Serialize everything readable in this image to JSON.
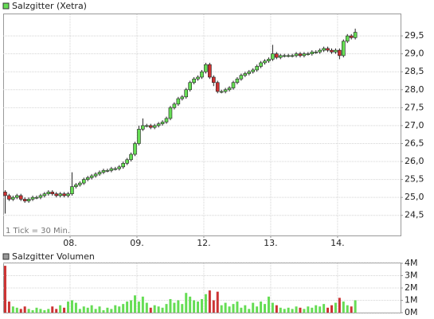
{
  "chart_data": [
    {
      "type": "candlestick",
      "title": "Salzgitter (Xetra)",
      "note": "1 Tick = 30 Min.",
      "up_color": "#66dd55",
      "down_color": "#cc3333",
      "grid": true,
      "categories": [
        null,
        null,
        null,
        null,
        null,
        null,
        null,
        null,
        null,
        null,
        null,
        null,
        null,
        null,
        null,
        null,
        null,
        "08.",
        null,
        null,
        null,
        null,
        null,
        null,
        null,
        null,
        null,
        null,
        null,
        null,
        null,
        null,
        null,
        null,
        "09.",
        null,
        null,
        null,
        null,
        null,
        null,
        null,
        null,
        null,
        null,
        null,
        null,
        null,
        null,
        null,
        null,
        "12.",
        null,
        null,
        null,
        null,
        null,
        null,
        null,
        null,
        null,
        null,
        null,
        null,
        null,
        null,
        null,
        null,
        "13.",
        null,
        null,
        null,
        null,
        null,
        null,
        null,
        null,
        null,
        null,
        null,
        null,
        null,
        null,
        null,
        null,
        "14.",
        null,
        null,
        null,
        null
      ],
      "open": [
        25.15,
        25.05,
        24.95,
        25.0,
        25.05,
        24.95,
        24.9,
        24.95,
        25.0,
        25.0,
        25.05,
        25.1,
        25.15,
        25.1,
        25.05,
        25.1,
        25.05,
        25.1,
        25.3,
        25.35,
        25.4,
        25.5,
        25.55,
        25.6,
        25.65,
        25.7,
        25.75,
        25.75,
        25.8,
        25.8,
        25.85,
        25.95,
        26.05,
        26.2,
        26.5,
        26.9,
        27.0,
        27.0,
        26.95,
        27.0,
        27.05,
        27.1,
        27.2,
        27.5,
        27.6,
        27.75,
        27.8,
        28.0,
        28.2,
        28.3,
        28.35,
        28.5,
        28.7,
        28.35,
        28.2,
        27.95,
        27.95,
        28.0,
        28.05,
        28.2,
        28.3,
        28.4,
        28.45,
        28.5,
        28.55,
        28.65,
        28.75,
        28.8,
        28.85,
        29.0,
        28.9,
        28.95,
        28.95,
        28.95,
        28.95,
        29.0,
        28.95,
        29.0,
        29.0,
        29.05,
        29.05,
        29.1,
        29.15,
        29.1,
        29.05,
        29.1,
        28.95,
        29.35,
        29.5,
        29.45
      ],
      "high": [
        25.2,
        25.1,
        25.05,
        25.1,
        25.1,
        25.0,
        25.0,
        25.05,
        25.05,
        25.1,
        25.15,
        25.2,
        25.2,
        25.15,
        25.15,
        25.15,
        25.15,
        25.7,
        25.4,
        25.45,
        25.55,
        25.6,
        25.65,
        25.7,
        25.75,
        25.8,
        25.8,
        25.85,
        25.85,
        25.9,
        26.0,
        26.1,
        26.25,
        26.55,
        27.0,
        27.2,
        27.05,
        27.05,
        27.05,
        27.1,
        27.15,
        27.25,
        27.55,
        27.65,
        27.8,
        27.85,
        28.05,
        28.25,
        28.35,
        28.4,
        28.55,
        28.75,
        28.75,
        28.4,
        28.25,
        28.0,
        28.05,
        28.1,
        28.25,
        28.35,
        28.45,
        28.5,
        28.55,
        28.6,
        28.7,
        28.8,
        28.85,
        28.9,
        29.25,
        29.05,
        29.0,
        29.0,
        29.0,
        29.0,
        29.05,
        29.05,
        29.05,
        29.05,
        29.1,
        29.1,
        29.15,
        29.2,
        29.2,
        29.15,
        29.15,
        29.15,
        29.4,
        29.55,
        29.55,
        29.7
      ],
      "low": [
        24.55,
        24.9,
        24.9,
        24.95,
        24.9,
        24.85,
        24.85,
        24.9,
        24.95,
        24.95,
        25.0,
        25.05,
        25.05,
        25.0,
        25.0,
        25.0,
        25.0,
        25.05,
        25.25,
        25.3,
        25.35,
        25.45,
        25.5,
        25.55,
        25.6,
        25.65,
        25.7,
        25.7,
        25.75,
        25.75,
        25.8,
        25.9,
        26.0,
        26.15,
        26.45,
        26.85,
        26.95,
        26.9,
        26.9,
        26.95,
        27.0,
        27.05,
        27.15,
        27.45,
        27.55,
        27.7,
        27.75,
        27.95,
        28.15,
        28.25,
        28.3,
        28.45,
        28.3,
        28.1,
        27.9,
        27.9,
        27.9,
        27.95,
        28.0,
        28.15,
        28.25,
        28.35,
        28.4,
        28.45,
        28.5,
        28.6,
        28.7,
        28.75,
        28.8,
        28.85,
        28.85,
        28.9,
        28.9,
        28.9,
        28.9,
        28.9,
        28.9,
        28.95,
        28.95,
        29.0,
        29.0,
        29.05,
        29.05,
        29.0,
        29.0,
        28.85,
        28.9,
        29.3,
        29.4,
        29.4
      ],
      "close": [
        25.05,
        24.95,
        25.0,
        25.05,
        24.95,
        24.9,
        24.95,
        25.0,
        25.0,
        25.05,
        25.1,
        25.15,
        25.1,
        25.05,
        25.1,
        25.05,
        25.1,
        25.3,
        25.35,
        25.4,
        25.5,
        25.55,
        25.6,
        25.65,
        25.7,
        25.75,
        25.75,
        25.8,
        25.8,
        25.85,
        25.95,
        26.05,
        26.2,
        26.5,
        26.9,
        27.0,
        27.0,
        26.95,
        27.0,
        27.05,
        27.1,
        27.2,
        27.5,
        27.6,
        27.75,
        27.8,
        28.0,
        28.2,
        28.3,
        28.35,
        28.5,
        28.7,
        28.35,
        28.2,
        27.95,
        27.95,
        28.0,
        28.05,
        28.2,
        28.3,
        28.4,
        28.45,
        28.5,
        28.55,
        28.65,
        28.75,
        28.8,
        28.85,
        29.0,
        28.9,
        28.95,
        28.95,
        28.95,
        28.95,
        29.0,
        28.95,
        29.0,
        29.0,
        29.05,
        29.05,
        29.1,
        29.15,
        29.1,
        29.05,
        29.1,
        28.95,
        29.35,
        29.5,
        29.45,
        29.6
      ],
      "ylim": [
        23.94,
        30.1
      ],
      "yticks": [
        {
          "value": 24.5,
          "label": "24,5"
        },
        {
          "value": 25,
          "label": "25,0"
        },
        {
          "value": 25.5,
          "label": "25,5"
        },
        {
          "value": 26,
          "label": "26,0"
        },
        {
          "value": 26.5,
          "label": "26,5"
        },
        {
          "value": 27,
          "label": "27,0"
        },
        {
          "value": 27.5,
          "label": "27,5"
        },
        {
          "value": 28,
          "label": "28,0"
        },
        {
          "value": 28.5,
          "label": "28,5"
        },
        {
          "value": 29,
          "label": "29,0"
        },
        {
          "value": 29.5,
          "label": "29,5"
        }
      ]
    },
    {
      "type": "bar",
      "title": "Salzgitter Volumen",
      "color": "#999999",
      "grid": true,
      "values": [
        3.8,
        0.9,
        0.5,
        0.4,
        0.3,
        0.5,
        0.3,
        0.2,
        0.4,
        0.3,
        0.2,
        0.3,
        0.5,
        0.3,
        0.6,
        0.4,
        0.9,
        1.0,
        0.8,
        0.3,
        0.5,
        0.4,
        0.6,
        0.3,
        0.5,
        0.2,
        0.4,
        0.3,
        0.6,
        0.5,
        0.7,
        0.9,
        1.0,
        1.4,
        0.9,
        1.3,
        0.8,
        0.4,
        0.6,
        0.5,
        0.4,
        0.7,
        1.1,
        0.8,
        1.0,
        0.7,
        1.6,
        1.3,
        1.0,
        0.9,
        1.1,
        1.5,
        1.8,
        1.0,
        1.7,
        0.6,
        0.8,
        0.5,
        0.7,
        0.9,
        0.4,
        0.6,
        0.3,
        0.8,
        0.5,
        0.9,
        0.7,
        1.3,
        0.8,
        0.6,
        0.4,
        0.3,
        0.4,
        0.3,
        0.5,
        0.4,
        0.3,
        0.5,
        0.4,
        0.6,
        0.5,
        0.7,
        0.4,
        0.6,
        0.8,
        1.2,
        0.9,
        0.6,
        0.5,
        1.0
      ],
      "ylim": [
        0,
        4
      ],
      "yticks": [
        {
          "value": 0,
          "label": "0M"
        },
        {
          "value": 1,
          "label": "1M"
        },
        {
          "value": 2,
          "label": "2M"
        },
        {
          "value": 3,
          "label": "3M"
        },
        {
          "value": 4,
          "label": "4M"
        }
      ]
    }
  ]
}
